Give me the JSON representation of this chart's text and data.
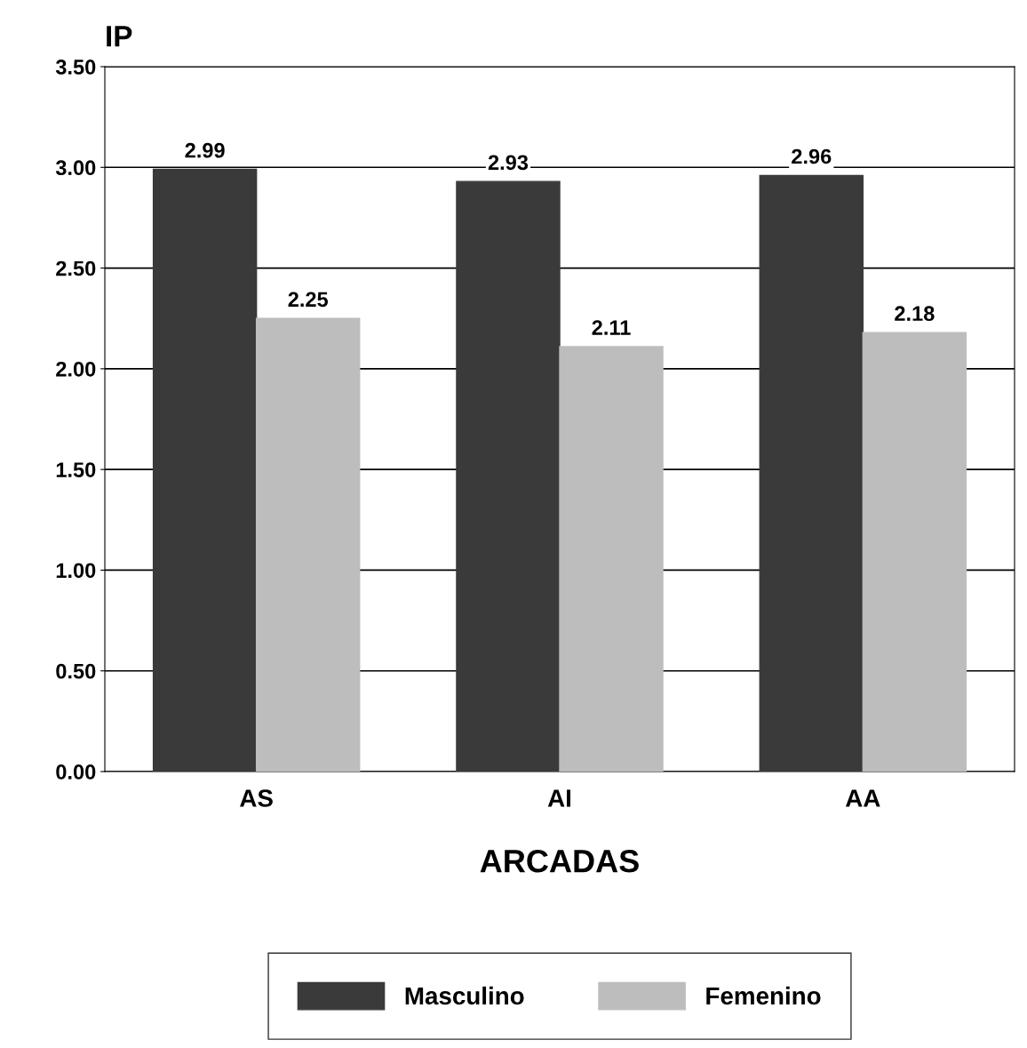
{
  "chart_data": {
    "type": "bar",
    "ylabel": "IP",
    "xlabel": "ARCADAS",
    "categories": [
      "AS",
      "AI",
      "AA"
    ],
    "series": [
      {
        "name": "Masculino",
        "color": "#3a3a3a",
        "values": [
          2.99,
          2.93,
          2.96
        ]
      },
      {
        "name": "Femenino",
        "color": "#bdbdbd",
        "values": [
          2.25,
          2.11,
          2.18
        ]
      }
    ],
    "ylim": [
      0,
      3.5
    ],
    "yticks": [
      {
        "value": 0,
        "label": "0.00"
      },
      {
        "value": 0.5,
        "label": "0.50"
      },
      {
        "value": 1,
        "label": "1.00"
      },
      {
        "value": 1.5,
        "label": "1.50"
      },
      {
        "value": 2,
        "label": "2.00"
      },
      {
        "value": 2.5,
        "label": "2.50"
      },
      {
        "value": 3,
        "label": "3.00"
      },
      {
        "value": 3.5,
        "label": "3.50"
      }
    ],
    "grid": "y",
    "legend": "bottom",
    "data_labels": true
  }
}
